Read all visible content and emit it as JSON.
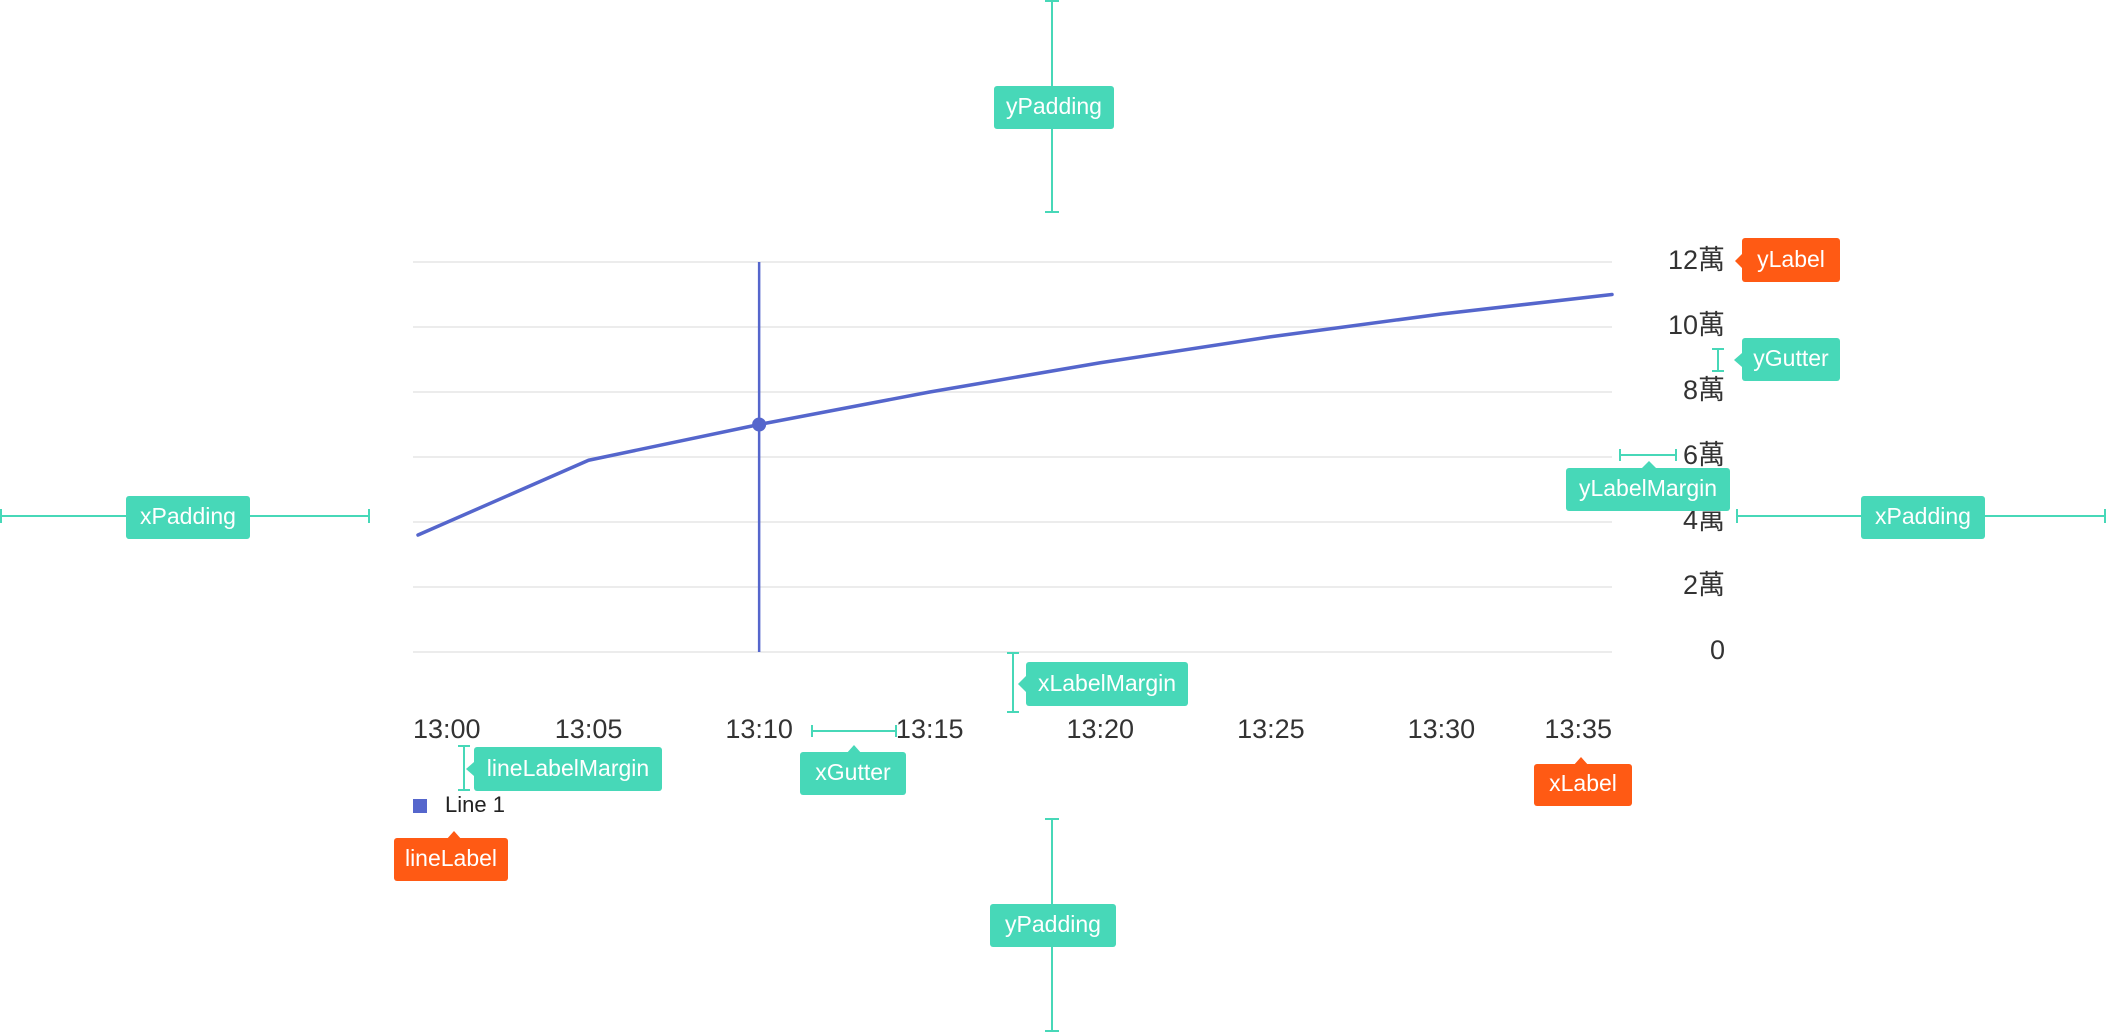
{
  "colors": {
    "line": "#5566CC",
    "grid": "#E5E5E5",
    "axis_text": "#333333",
    "annotation": "#47D8B8",
    "label_tag": "#FF5A14",
    "tag_text": "#FFFFFF"
  },
  "chart_data": {
    "type": "line",
    "categories": [
      "13:00",
      "13:05",
      "13:10",
      "13:15",
      "13:20",
      "13:25",
      "13:30",
      "13:35"
    ],
    "series": [
      {
        "name": "Line 1",
        "values": [
          36000,
          59000,
          70000,
          80000,
          89000,
          97000,
          104000,
          110000
        ]
      }
    ],
    "ylim": [
      0,
      120000
    ],
    "y_ticks": [
      "0",
      "2萬",
      "4萬",
      "6萬",
      "8萬",
      "10萬",
      "12萬"
    ],
    "y_axis_position": "right",
    "grid": true,
    "legend_position": "bottom-left",
    "highlight_category": "13:10",
    "title": "",
    "xlabel": "",
    "ylabel": ""
  },
  "annotations": {
    "yPadding_top": "yPadding",
    "yPadding_bottom": "yPadding",
    "xPadding_left": "xPadding",
    "xPadding_right": "xPadding",
    "yLabel": "yLabel",
    "yGutter": "yGutter",
    "yLabelMargin": "yLabelMargin",
    "xLabelMargin": "xLabelMargin",
    "lineLabelMargin": "lineLabelMargin",
    "xGutter": "xGutter",
    "xLabel": "xLabel",
    "lineLabel": "lineLabel"
  }
}
